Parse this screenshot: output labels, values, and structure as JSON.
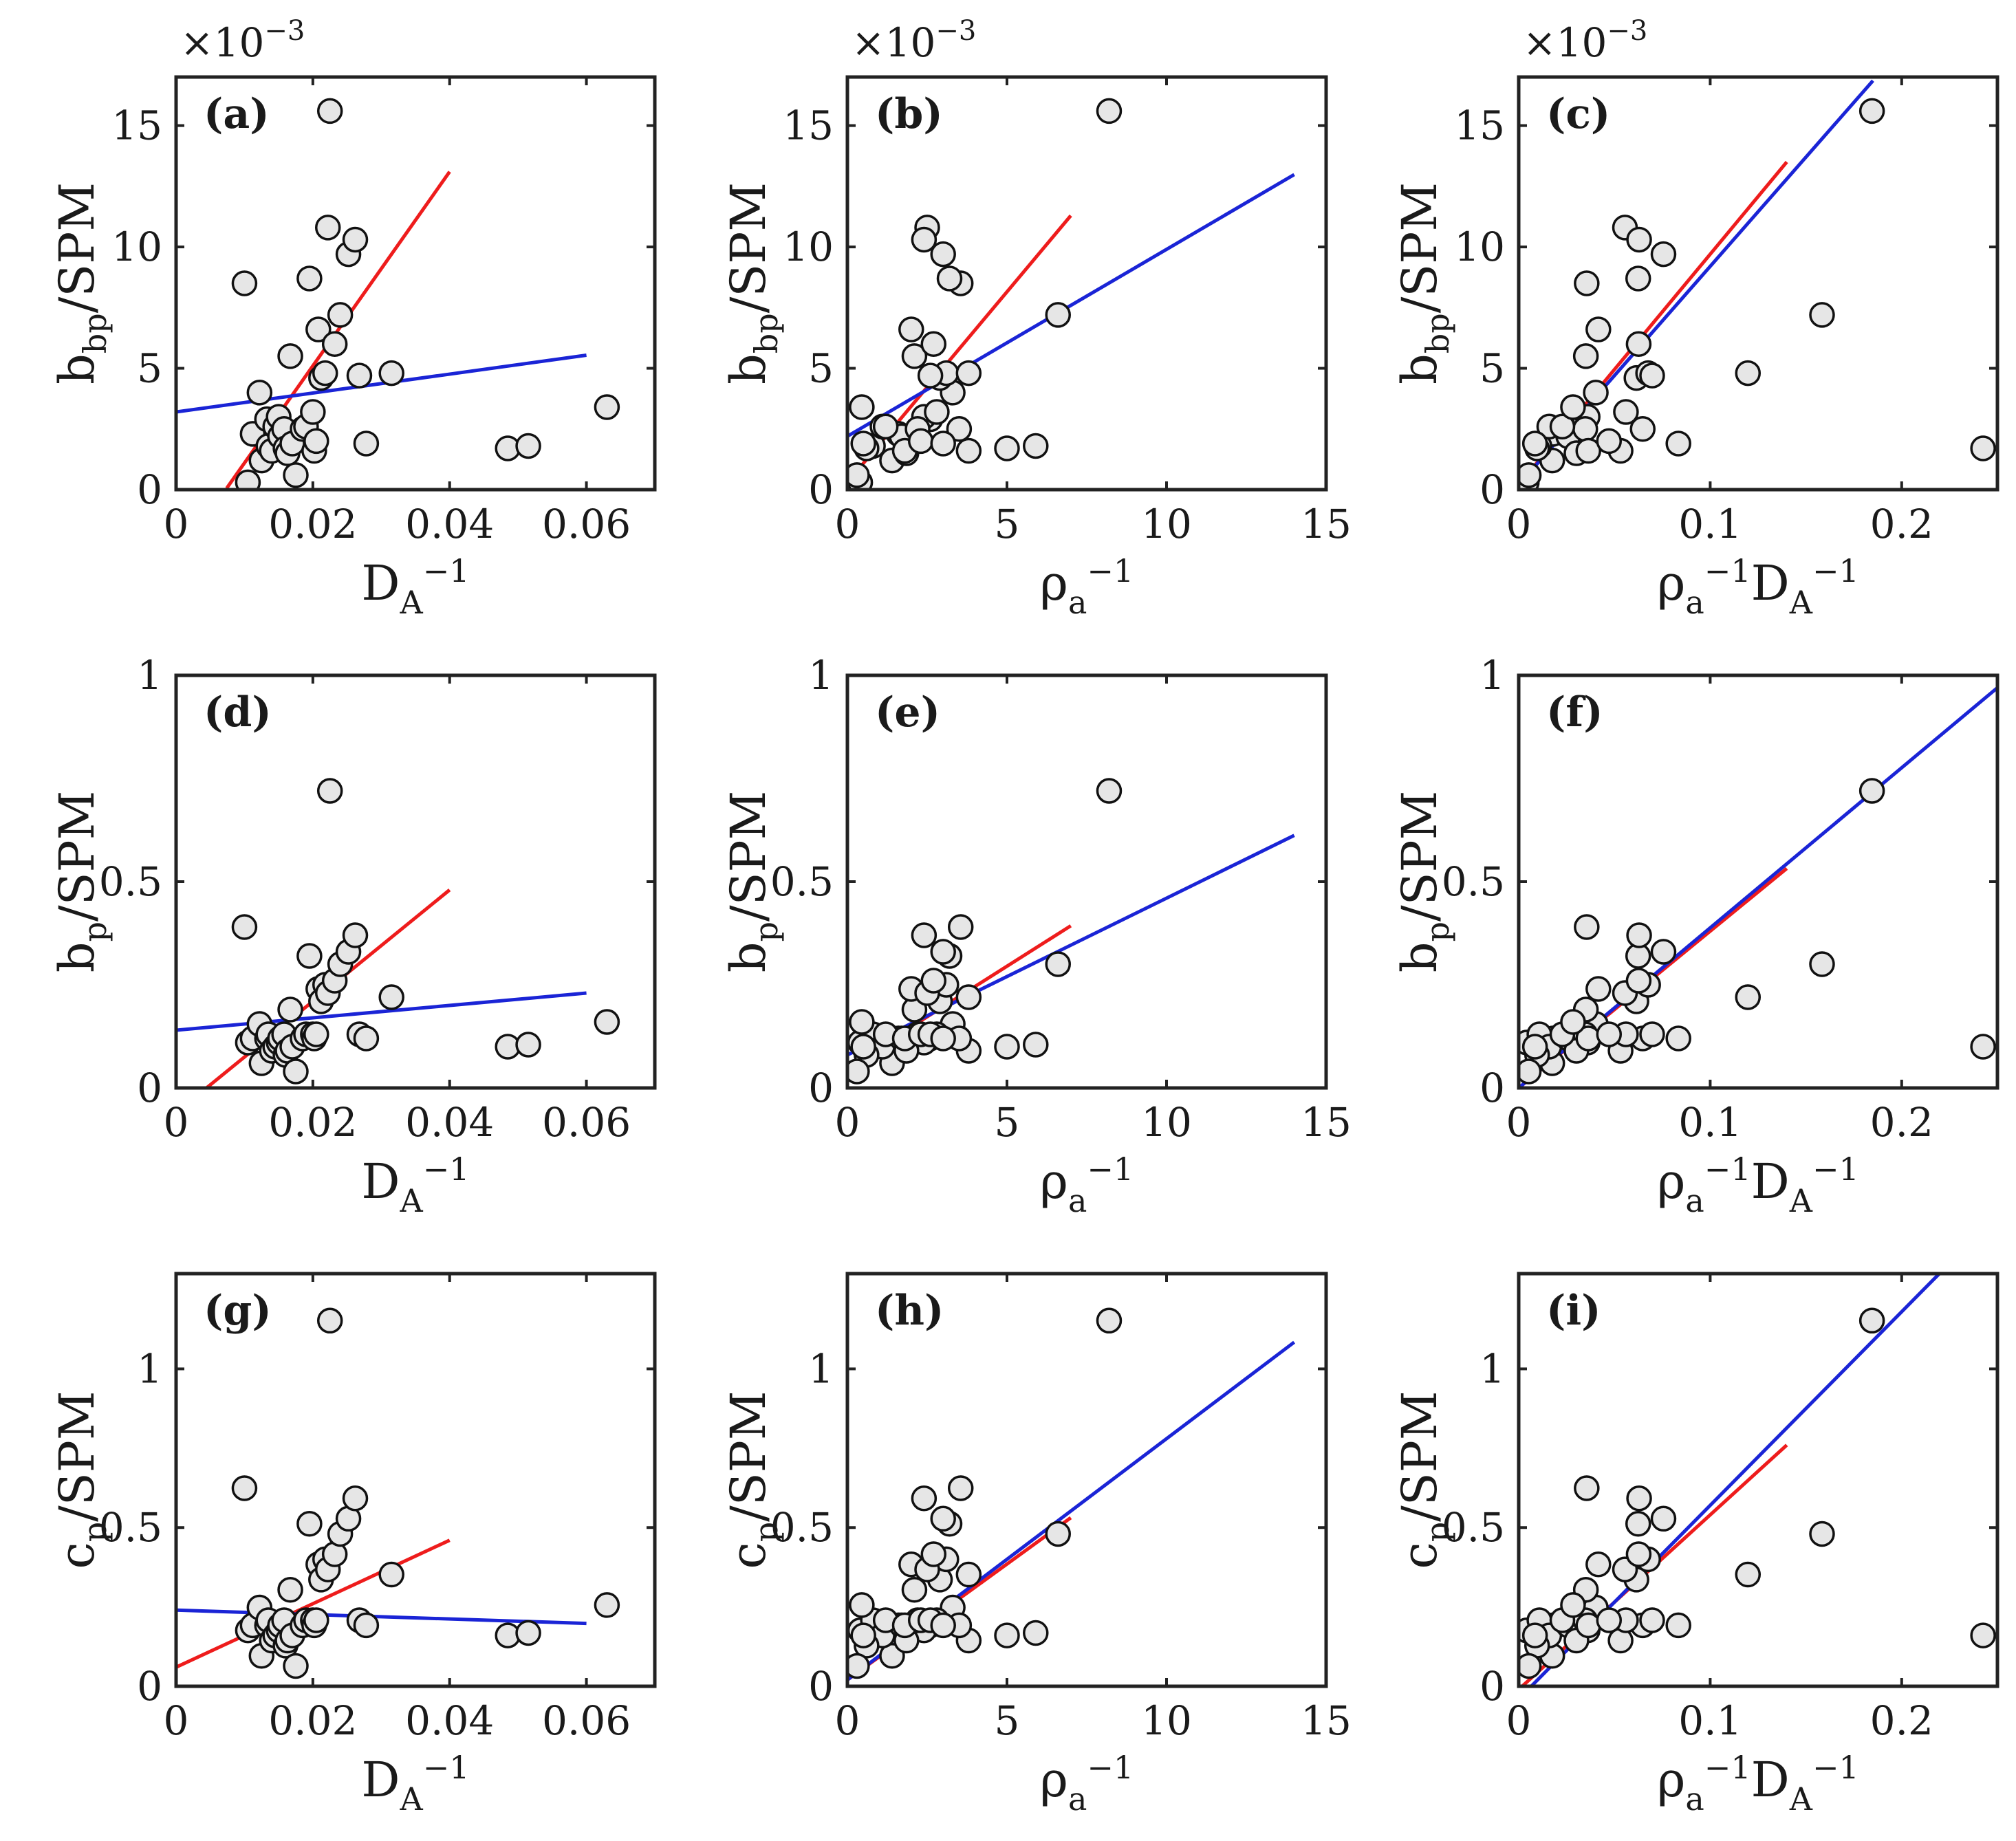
{
  "figure": {
    "colors": {
      "fit_red": "#ee1c1c",
      "fit_blue": "#1a24d6",
      "marker_fill": "#e6e6e6",
      "marker_edge": "#111111"
    },
    "dataset": {
      "DA_inv": [
        0.01,
        0.0105,
        0.0112,
        0.0122,
        0.0125,
        0.0133,
        0.0135,
        0.014,
        0.0145,
        0.015,
        0.0152,
        0.0158,
        0.016,
        0.0163,
        0.0167,
        0.017,
        0.0175,
        0.0185,
        0.019,
        0.0195,
        0.02,
        0.0202,
        0.0205,
        0.0208,
        0.0212,
        0.0218,
        0.0222,
        0.0225,
        0.0232,
        0.024,
        0.0252,
        0.0262,
        0.0268,
        0.0278,
        0.0315,
        0.0485,
        0.0515,
        0.063
      ],
      "rho_a_inv": [
        3.55,
        0.4,
        1.6,
        3.3,
        1.4,
        2.6,
        0.8,
        3.8,
        1.1,
        2.4,
        1.7,
        2.2,
        0.6,
        1.85,
        2.1,
        0.5,
        0.3,
        3.5,
        1.2,
        3.2,
        2.8,
        1.8,
        2.3,
        2.0,
        2.9,
        3.1,
        2.5,
        8.2,
        2.7,
        6.6,
        3.0,
        2.4,
        2.6,
        3.0,
        3.8,
        5.0,
        5.9,
        0.45
      ],
      "bbp_SPM_e3": [
        8.5,
        0.3,
        2.3,
        4.0,
        1.2,
        2.9,
        1.8,
        1.6,
        2.6,
        3.0,
        2.2,
        2.5,
        1.7,
        1.5,
        5.5,
        1.9,
        0.6,
        2.5,
        2.6,
        8.7,
        3.2,
        1.6,
        2.0,
        6.6,
        4.6,
        4.8,
        10.8,
        15.6,
        6.0,
        7.2,
        9.7,
        10.3,
        4.7,
        1.9,
        4.8,
        1.7,
        1.8,
        3.4
      ],
      "bp_SPM": [
        0.39,
        0.11,
        0.12,
        0.155,
        0.06,
        0.12,
        0.13,
        0.09,
        0.1,
        0.11,
        0.12,
        0.13,
        0.08,
        0.09,
        0.19,
        0.1,
        0.04,
        0.12,
        0.13,
        0.32,
        0.13,
        0.12,
        0.13,
        0.24,
        0.21,
        0.25,
        0.23,
        0.72,
        0.26,
        0.3,
        0.33,
        0.37,
        0.13,
        0.12,
        0.22,
        0.1,
        0.105,
        0.16
      ]
    },
    "panels": [
      {
        "id": "a",
        "label": "(a)",
        "x_key": "DA_inv",
        "y_key": "bbp_SPM_e3",
        "xlim": [
          0,
          0.07
        ],
        "ylim": [
          0,
          17
        ],
        "xticks": [
          0,
          0.02,
          0.04,
          0.06
        ],
        "xtick_labels": [
          "0",
          "0.02",
          "0.04",
          "0.06"
        ],
        "yticks": [
          0,
          5,
          10,
          15
        ],
        "ytick_labels": [
          "0",
          "5",
          "10",
          "15"
        ],
        "ylabel": {
          "main": "b",
          "sub": "bp",
          "rest": "/SPM"
        },
        "xlabel": {
          "type": "D"
        },
        "multiplier": {
          "base": "×10",
          "exp": "−3"
        },
        "red_fit": {
          "x0": 0.0074,
          "x1": 0.04,
          "slope": 400.0,
          "intercept": -2.9
        },
        "blue_fit": {
          "x0": 0.0,
          "x1": 0.06,
          "slope": 39.0,
          "intercept": 3.2
        }
      },
      {
        "id": "b",
        "label": "(b)",
        "x_key": "rho_a_inv",
        "y_key": "bbp_SPM_e3",
        "xlim": [
          0,
          15
        ],
        "ylim": [
          0,
          17
        ],
        "xticks": [
          0,
          5,
          10,
          15
        ],
        "xtick_labels": [
          "0",
          "5",
          "10",
          "15"
        ],
        "yticks": [
          0,
          5,
          10,
          15
        ],
        "ytick_labels": [
          "0",
          "5",
          "10",
          "15"
        ],
        "ylabel": {
          "main": "b",
          "sub": "bp",
          "rest": "/SPM"
        },
        "xlabel": {
          "type": "rho"
        },
        "multiplier": {
          "base": "×10",
          "exp": "−3"
        },
        "red_fit": {
          "x0": 0.0,
          "x1": 7.0,
          "slope": 1.57,
          "intercept": 0.3
        },
        "blue_fit": {
          "x0": 0.0,
          "x1": 14.0,
          "slope": 0.77,
          "intercept": 2.2
        }
      },
      {
        "id": "c",
        "label": "(c)",
        "x_key": "rhoDA",
        "y_key": "bbp_SPM_e3",
        "xlim": [
          0,
          0.25
        ],
        "ylim": [
          0,
          17
        ],
        "xticks": [
          0,
          0.1,
          0.2
        ],
        "xtick_labels": [
          "0",
          "0.1",
          "0.2"
        ],
        "yticks": [
          0,
          5,
          10,
          15
        ],
        "ytick_labels": [
          "0",
          "5",
          "10",
          "15"
        ],
        "ylabel": {
          "main": "b",
          "sub": "bp",
          "rest": "/SPM"
        },
        "xlabel": {
          "type": "rhoD"
        },
        "multiplier": {
          "base": "×10",
          "exp": "−3"
        },
        "red_fit": {
          "x0": 0.0,
          "x1": 0.14,
          "slope": 95.0,
          "intercept": 0.2
        },
        "blue_fit": {
          "x0": 0.0,
          "x1": 0.185,
          "slope": 90.0,
          "intercept": 0.2
        }
      },
      {
        "id": "d",
        "label": "(d)",
        "x_key": "DA_inv",
        "y_key": "bp_SPM",
        "xlim": [
          0,
          0.07
        ],
        "ylim": [
          0,
          1
        ],
        "xticks": [
          0,
          0.02,
          0.04,
          0.06
        ],
        "xtick_labels": [
          "0",
          "0.02",
          "0.04",
          "0.06"
        ],
        "yticks": [
          0,
          0.5,
          1
        ],
        "ytick_labels": [
          "0",
          "0.5",
          "1"
        ],
        "ylabel": {
          "main": "b",
          "sub": "p",
          "rest": "/SPM"
        },
        "xlabel": {
          "type": "D"
        },
        "multiplier": null,
        "red_fit": {
          "x0": 0.0045,
          "x1": 0.04,
          "slope": 13.5,
          "intercept": -0.06
        },
        "blue_fit": {
          "x0": 0.0,
          "x1": 0.06,
          "slope": 1.5,
          "intercept": 0.14
        }
      },
      {
        "id": "e",
        "label": "(e)",
        "x_key": "rho_a_inv",
        "y_key": "bp_SPM",
        "xlim": [
          0,
          15
        ],
        "ylim": [
          0,
          1
        ],
        "xticks": [
          0,
          5,
          10,
          15
        ],
        "xtick_labels": [
          "0",
          "5",
          "10",
          "15"
        ],
        "yticks": [
          0,
          0.5,
          1
        ],
        "ytick_labels": [
          "0",
          "0.5",
          "1"
        ],
        "ylabel": {
          "main": "b",
          "sub": "p",
          "rest": "/SPM"
        },
        "xlabel": {
          "type": "rho"
        },
        "multiplier": null,
        "red_fit": {
          "x0": 0.0,
          "x1": 7.0,
          "slope": 0.049,
          "intercept": 0.05
        },
        "blue_fit": {
          "x0": 0.0,
          "x1": 14.0,
          "slope": 0.038,
          "intercept": 0.08
        }
      },
      {
        "id": "f",
        "label": "(f)",
        "x_key": "rhoDA",
        "y_key": "bp_SPM",
        "xlim": [
          0,
          0.25
        ],
        "ylim": [
          0,
          1
        ],
        "xticks": [
          0,
          0.1,
          0.2
        ],
        "xtick_labels": [
          "0",
          "0.1",
          "0.2"
        ],
        "yticks": [
          0,
          0.5,
          1
        ],
        "ytick_labels": [
          "0",
          "0.5",
          "1"
        ],
        "ylabel": {
          "main": "b",
          "sub": "p",
          "rest": "/SPM"
        },
        "xlabel": {
          "type": "rhoD"
        },
        "multiplier": null,
        "red_fit": {
          "x0": 0.0,
          "x1": 0.14,
          "slope": 3.8,
          "intercept": 0.0
        },
        "blue_fit": {
          "x0": 0.0,
          "x1": 0.25,
          "slope": 3.88,
          "intercept": 0.0
        }
      },
      {
        "id": "g",
        "label": "(g)",
        "x_key": "DA_inv",
        "y_key": "cp_SPM",
        "xlim": [
          0,
          0.07
        ],
        "ylim": [
          0,
          1.3
        ],
        "xticks": [
          0,
          0.02,
          0.04,
          0.06
        ],
        "xtick_labels": [
          "0",
          "0.02",
          "0.04",
          "0.06"
        ],
        "yticks": [
          0,
          0.5,
          1
        ],
        "ytick_labels": [
          "0",
          "0.5",
          "1"
        ],
        "ylabel": {
          "main": "c",
          "sub": "p",
          "rest": "/SPM"
        },
        "xlabel": {
          "type": "D"
        },
        "multiplier": null,
        "red_fit": {
          "x0": 0.0,
          "x1": 0.04,
          "slope": 10.0,
          "intercept": 0.06
        },
        "blue_fit": {
          "x0": 0.0,
          "x1": 0.06,
          "slope": -0.7,
          "intercept": 0.24
        }
      },
      {
        "id": "h",
        "label": "(h)",
        "x_key": "rho_a_inv",
        "y_key": "cp_SPM",
        "xlim": [
          0,
          15
        ],
        "ylim": [
          0,
          1.3
        ],
        "xticks": [
          0,
          5,
          10,
          15
        ],
        "xtick_labels": [
          "0",
          "5",
          "10",
          "15"
        ],
        "yticks": [
          0,
          0.5,
          1
        ],
        "ytick_labels": [
          "0",
          "0.5",
          "1"
        ],
        "ylabel": {
          "main": "c",
          "sub": "p",
          "rest": "/SPM"
        },
        "xlabel": {
          "type": "rho"
        },
        "multiplier": null,
        "red_fit": {
          "x0": 0.0,
          "x1": 7.0,
          "slope": 0.073,
          "intercept": 0.02
        },
        "blue_fit": {
          "x0": 0.0,
          "x1": 14.0,
          "slope": 0.076,
          "intercept": 0.02
        }
      },
      {
        "id": "i",
        "label": "(i)",
        "x_key": "rhoDA",
        "y_key": "cp_SPM",
        "xlim": [
          0,
          0.25
        ],
        "ylim": [
          0,
          1.3
        ],
        "xticks": [
          0,
          0.1,
          0.2
        ],
        "xtick_labels": [
          "0",
          "0.1",
          "0.2"
        ],
        "yticks": [
          0,
          0.5,
          1
        ],
        "ytick_labels": [
          "0",
          "0.5",
          "1"
        ],
        "ylabel": {
          "main": "c",
          "sub": "p",
          "rest": "/SPM"
        },
        "xlabel": {
          "type": "rhoD"
        },
        "multiplier": null,
        "red_fit": {
          "x0": 0.0,
          "x1": 0.14,
          "slope": 5.5,
          "intercept": -0.01
        },
        "blue_fit": {
          "x0": 0.0,
          "x1": 0.22,
          "slope": 6.1,
          "intercept": -0.04
        }
      }
    ],
    "xlabel_text": {
      "D": "D",
      "A": "A",
      "minus_one": "−1",
      "rho": "ρ",
      "a": "a"
    }
  },
  "chart_data": {
    "type": "scatter",
    "title": "",
    "grid": "3x3",
    "fit_colors": {
      "red": "#ee1c1c",
      "blue": "#1a24d6"
    },
    "panels": [
      {
        "label": "(a)",
        "xlabel": "DA^-1",
        "ylabel": "bbp/SPM",
        "y_multiplier": "×10^-3",
        "xlim": [
          0,
          0.07
        ],
        "ylim": [
          0,
          17
        ],
        "points_x": "DA_inv",
        "points_y": "bbp_SPM_e3",
        "fits": [
          "red",
          "blue"
        ]
      },
      {
        "label": "(b)",
        "xlabel": "ρa^-1",
        "ylabel": "bbp/SPM",
        "y_multiplier": "×10^-3",
        "xlim": [
          0,
          15
        ],
        "ylim": [
          0,
          17
        ],
        "points_x": "rho_a_inv",
        "points_y": "bbp_SPM_e3",
        "fits": [
          "red",
          "blue"
        ]
      },
      {
        "label": "(c)",
        "xlabel": "ρa^-1 DA^-1",
        "ylabel": "bbp/SPM",
        "y_multiplier": "×10^-3",
        "xlim": [
          0,
          0.25
        ],
        "ylim": [
          0,
          17
        ],
        "points_x": "rhoDA",
        "points_y": "bbp_SPM_e3",
        "fits": [
          "red",
          "blue"
        ]
      },
      {
        "label": "(d)",
        "xlabel": "DA^-1",
        "ylabel": "bp/SPM",
        "xlim": [
          0,
          0.07
        ],
        "ylim": [
          0,
          1
        ],
        "points_x": "DA_inv",
        "points_y": "bp_SPM",
        "fits": [
          "red",
          "blue"
        ]
      },
      {
        "label": "(e)",
        "xlabel": "ρa^-1",
        "ylabel": "bp/SPM",
        "xlim": [
          0,
          15
        ],
        "ylim": [
          0,
          1
        ],
        "points_x": "rho_a_inv",
        "points_y": "bp_SPM",
        "fits": [
          "red",
          "blue"
        ]
      },
      {
        "label": "(f)",
        "xlabel": "ρa^-1 DA^-1",
        "ylabel": "bp/SPM",
        "xlim": [
          0,
          0.25
        ],
        "ylim": [
          0,
          1
        ],
        "points_x": "rhoDA",
        "points_y": "bp_SPM",
        "fits": [
          "red",
          "blue"
        ]
      },
      {
        "label": "(g)",
        "xlabel": "DA^-1",
        "ylabel": "cp/SPM",
        "xlim": [
          0,
          0.07
        ],
        "ylim": [
          0,
          1.3
        ],
        "points_x": "DA_inv",
        "points_y": "cp_SPM",
        "fits": [
          "red",
          "blue"
        ]
      },
      {
        "label": "(h)",
        "xlabel": "ρa^-1",
        "ylabel": "cp/SPM",
        "xlim": [
          0,
          15
        ],
        "ylim": [
          0,
          1.3
        ],
        "points_x": "rho_a_inv",
        "points_y": "cp_SPM",
        "fits": [
          "red",
          "blue"
        ]
      },
      {
        "label": "(i)",
        "xlabel": "ρa^-1 DA^-1",
        "ylabel": "cp/SPM",
        "xlim": [
          0,
          0.25
        ],
        "ylim": [
          0,
          1.3
        ],
        "points_x": "rhoDA",
        "points_y": "cp_SPM",
        "fits": [
          "red",
          "blue"
        ]
      }
    ]
  }
}
